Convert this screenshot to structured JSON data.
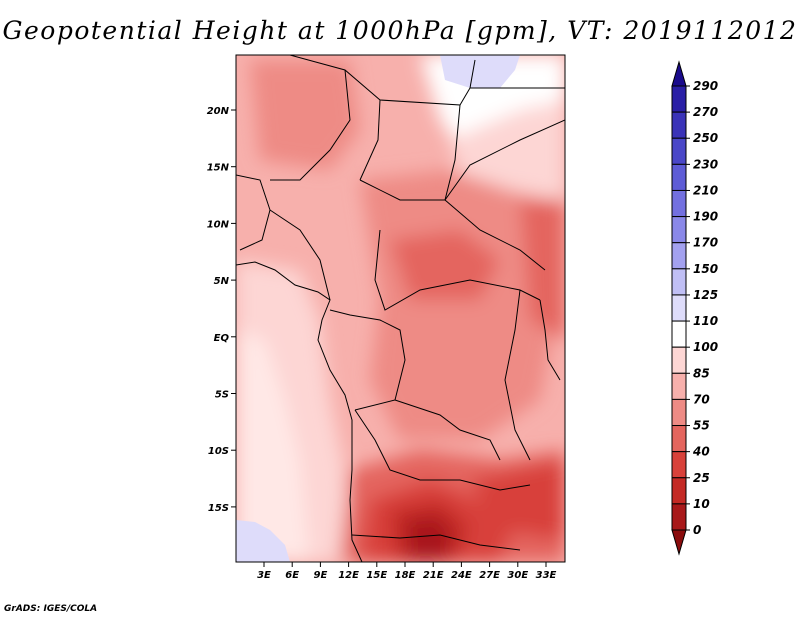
{
  "title": "Geopotential Height at 1000hPa [gpm], VT: 2019112012",
  "credit": "GrADS: IGES/COLA",
  "map": {
    "lon_labels": [
      "3E",
      "6E",
      "9E",
      "12E",
      "15E",
      "18E",
      "21E",
      "24E",
      "27E",
      "30E",
      "33E"
    ],
    "lat_labels": [
      "20N",
      "15N",
      "10N",
      "5N",
      "EQ",
      "5S",
      "10S",
      "15S"
    ]
  },
  "colorbar": {
    "levels": [
      "290",
      "270",
      "250",
      "230",
      "210",
      "190",
      "170",
      "150",
      "125",
      "110",
      "100",
      "85",
      "70",
      "55",
      "40",
      "25",
      "10",
      "0"
    ],
    "colors": [
      "#1a0b8c",
      "#2a1fa6",
      "#3a33b8",
      "#4a47c8",
      "#5e5cd6",
      "#7370e0",
      "#8a88e8",
      "#a3a1ef",
      "#c0bff5",
      "#dedcfa",
      "#ffffff",
      "#fdd6d4",
      "#f7b0ac",
      "#ee8b85",
      "#e4655e",
      "#d8413a",
      "#c42a25",
      "#a8191a",
      "#8a0c0d"
    ]
  }
}
